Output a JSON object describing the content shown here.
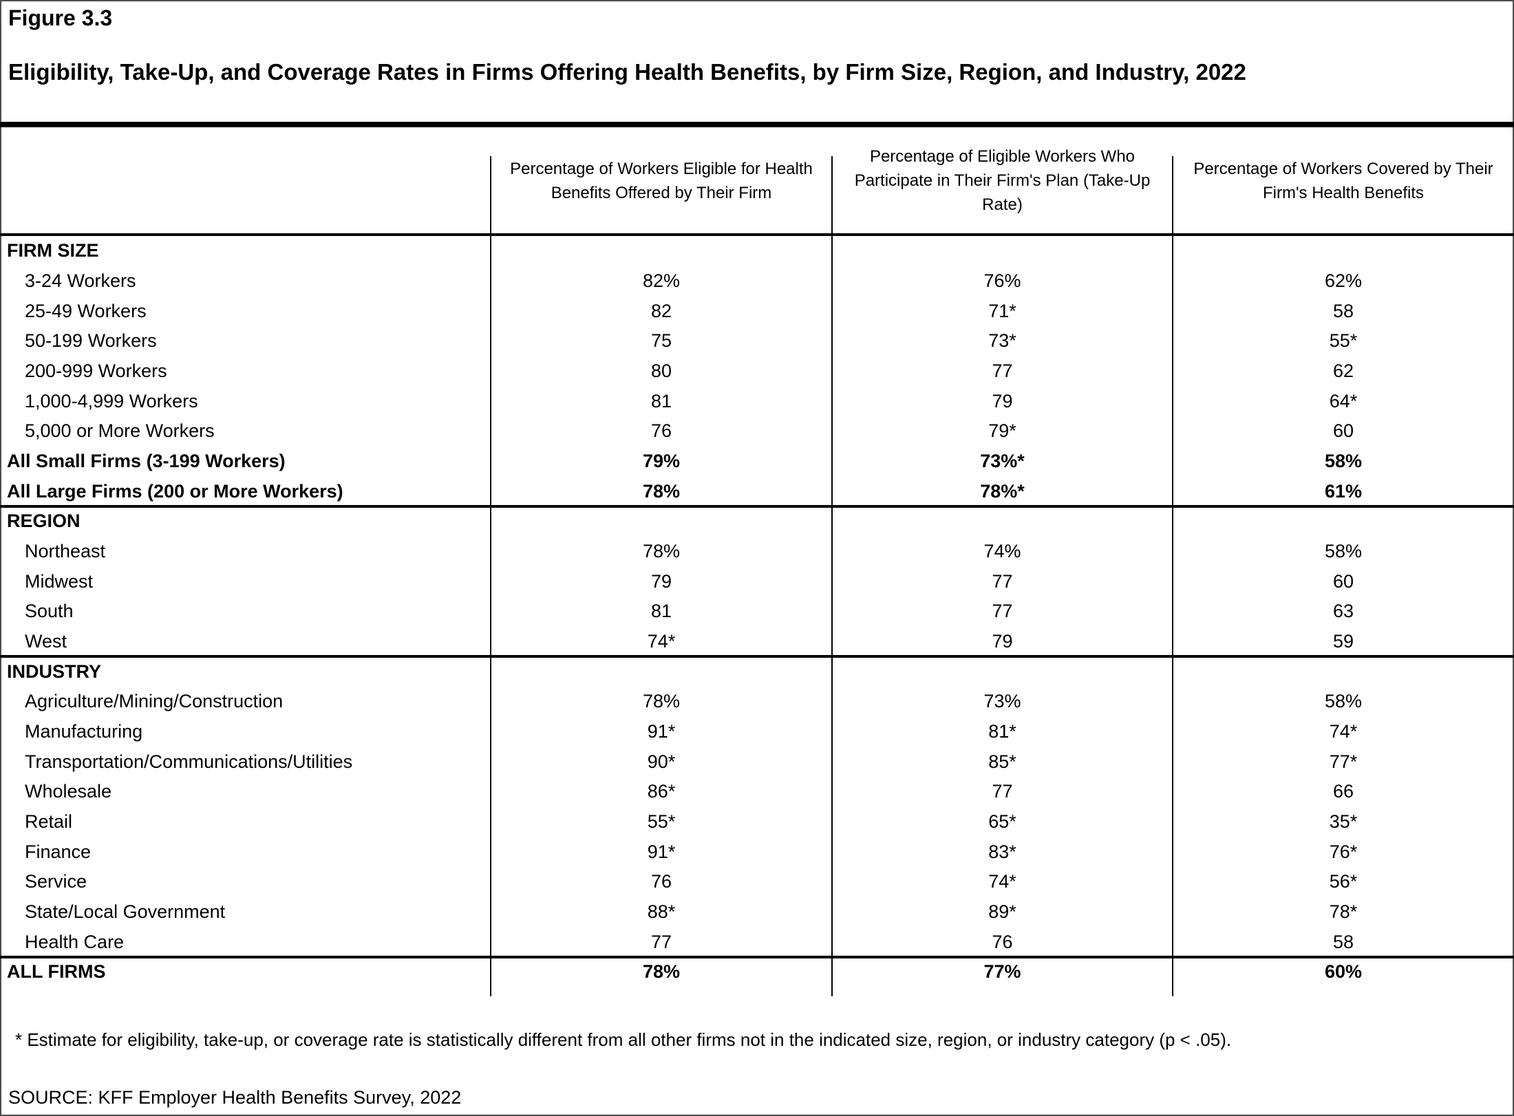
{
  "figure": {
    "label": "Figure 3.3",
    "title": "Eligibility, Take-Up, and Coverage Rates in Firms Offering Health Benefits, by Firm Size, Region, and Industry, 2022"
  },
  "table": {
    "columns": [
      "Percentage of Workers Eligible for Health Benefits Offered by Their Firm",
      "Percentage of Eligible Workers Who Participate in Their Firm's Plan (Take-Up Rate)",
      "Percentage of Workers Covered by Their Firm's Health Benefits"
    ],
    "sections": [
      {
        "header": "FIRM SIZE",
        "rows": [
          {
            "label": "3-24 Workers",
            "values": [
              "82%",
              "76%",
              "62%"
            ],
            "bold": false,
            "indent": true
          },
          {
            "label": "25-49 Workers",
            "values": [
              "82",
              "71*",
              "58"
            ],
            "bold": false,
            "indent": true
          },
          {
            "label": "50-199 Workers",
            "values": [
              "75",
              "73*",
              "55*"
            ],
            "bold": false,
            "indent": true
          },
          {
            "label": "200-999 Workers",
            "values": [
              "80",
              "77",
              "62"
            ],
            "bold": false,
            "indent": true
          },
          {
            "label": "1,000-4,999 Workers",
            "values": [
              "81",
              "79",
              "64*"
            ],
            "bold": false,
            "indent": true
          },
          {
            "label": "5,000 or More Workers",
            "values": [
              "76",
              "79*",
              "60"
            ],
            "bold": false,
            "indent": true
          },
          {
            "label": "All Small Firms (3-199 Workers)",
            "values": [
              "79%",
              "73%*",
              "58%"
            ],
            "bold": true,
            "indent": false
          },
          {
            "label": "All Large Firms (200 or More Workers)",
            "values": [
              "78%",
              "78%*",
              "61%"
            ],
            "bold": true,
            "indent": false
          }
        ]
      },
      {
        "header": "REGION",
        "rows": [
          {
            "label": "Northeast",
            "values": [
              "78%",
              "74%",
              "58%"
            ],
            "bold": false,
            "indent": true
          },
          {
            "label": "Midwest",
            "values": [
              "79",
              "77",
              "60"
            ],
            "bold": false,
            "indent": true
          },
          {
            "label": "South",
            "values": [
              "81",
              "77",
              "63"
            ],
            "bold": false,
            "indent": true
          },
          {
            "label": "West",
            "values": [
              "74*",
              "79",
              "59"
            ],
            "bold": false,
            "indent": true
          }
        ]
      },
      {
        "header": "INDUSTRY",
        "rows": [
          {
            "label": "Agriculture/Mining/Construction",
            "values": [
              "78%",
              "73%",
              "58%"
            ],
            "bold": false,
            "indent": true
          },
          {
            "label": "Manufacturing",
            "values": [
              "91*",
              "81*",
              "74*"
            ],
            "bold": false,
            "indent": true
          },
          {
            "label": "Transportation/Communications/Utilities",
            "values": [
              "90*",
              "85*",
              "77*"
            ],
            "bold": false,
            "indent": true
          },
          {
            "label": "Wholesale",
            "values": [
              "86*",
              "77",
              "66"
            ],
            "bold": false,
            "indent": true
          },
          {
            "label": "Retail",
            "values": [
              "55*",
              "65*",
              "35*"
            ],
            "bold": false,
            "indent": true
          },
          {
            "label": "Finance",
            "values": [
              "91*",
              "83*",
              "76*"
            ],
            "bold": false,
            "indent": true
          },
          {
            "label": "Service",
            "values": [
              "76",
              "74*",
              "56*"
            ],
            "bold": false,
            "indent": true
          },
          {
            "label": "State/Local Government",
            "values": [
              "88*",
              "89*",
              "78*"
            ],
            "bold": false,
            "indent": true
          },
          {
            "label": "Health Care",
            "values": [
              "77",
              "76",
              "58"
            ],
            "bold": false,
            "indent": true
          }
        ]
      },
      {
        "header": null,
        "rows": [
          {
            "label": "ALL FIRMS",
            "values": [
              "78%",
              "77%",
              "60%"
            ],
            "bold": true,
            "indent": false
          }
        ]
      }
    ]
  },
  "footnote": "* Estimate for eligibility, take-up, or coverage rate is statistically different from all other firms not in the indicated size, region, or industry category (p < .05).",
  "source": "SOURCE: KFF Employer Health Benefits Survey, 2022"
}
